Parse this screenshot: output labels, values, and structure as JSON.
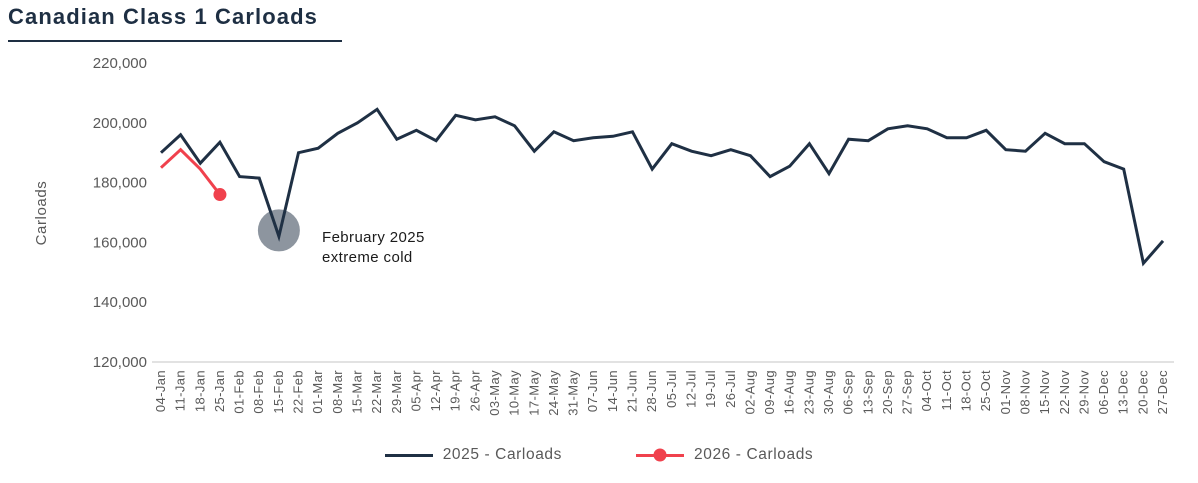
{
  "title": "Canadian Class 1 Carloads",
  "colors": {
    "navy": "#1f3044",
    "red": "#f0414d",
    "axis_text": "#595959",
    "axis_line": "#d9d9d9",
    "annotation_circle": "#8d959f",
    "annotation_text": "#1b1b1b",
    "title_text": "#1e2f43"
  },
  "chart_data": {
    "type": "line",
    "title": "Canadian Class 1 Carloads",
    "xlabel": "",
    "ylabel": "Carloads",
    "ylim": [
      120000,
      220000
    ],
    "ytick_step": 20000,
    "grid": false,
    "legend_position": "bottom",
    "categories": [
      "04-Jan",
      "11-Jan",
      "18-Jan",
      "25-Jan",
      "01-Feb",
      "08-Feb",
      "15-Feb",
      "22-Feb",
      "01-Mar",
      "08-Mar",
      "15-Mar",
      "22-Mar",
      "29-Mar",
      "05-Apr",
      "12-Apr",
      "19-Apr",
      "26-Apr",
      "03-May",
      "10-May",
      "17-May",
      "24-May",
      "31-May",
      "07-Jun",
      "14-Jun",
      "21-Jun",
      "28-Jun",
      "05-Jul",
      "12-Jul",
      "19-Jul",
      "26-Jul",
      "02-Aug",
      "09-Aug",
      "16-Aug",
      "23-Aug",
      "30-Aug",
      "06-Sep",
      "13-Sep",
      "20-Sep",
      "27-Sep",
      "04-Oct",
      "11-Oct",
      "18-Oct",
      "25-Oct",
      "01-Nov",
      "08-Nov",
      "15-Nov",
      "22-Nov",
      "29-Nov",
      "06-Dec",
      "13-Dec",
      "20-Dec",
      "27-Dec"
    ],
    "series": [
      {
        "name": "2025 - Carloads",
        "color": "#1f3044",
        "marker": "none",
        "values": [
          190000,
          196000,
          186500,
          193500,
          182000,
          181500,
          162000,
          190000,
          191500,
          196500,
          200000,
          204500,
          194500,
          197500,
          194000,
          202500,
          201000,
          202000,
          199000,
          190500,
          197000,
          194000,
          195000,
          195500,
          197000,
          184500,
          193000,
          190500,
          189000,
          191000,
          189000,
          182000,
          185500,
          193000,
          183000,
          194500,
          194000,
          198000,
          199000,
          198000,
          195000,
          195000,
          197500,
          191000,
          190500,
          196500,
          193000,
          193000,
          187000,
          184500,
          153000,
          160500
        ]
      },
      {
        "name": "2026 - Carloads",
        "color": "#f0414d",
        "marker": "dot-last",
        "values": [
          185000,
          191000,
          184500,
          176000
        ]
      }
    ],
    "annotation": {
      "text_line1": "February 2025",
      "text_line2": "extreme cold",
      "attach_series": 0,
      "attach_index": 6,
      "circle_color": "#8d959f"
    }
  }
}
